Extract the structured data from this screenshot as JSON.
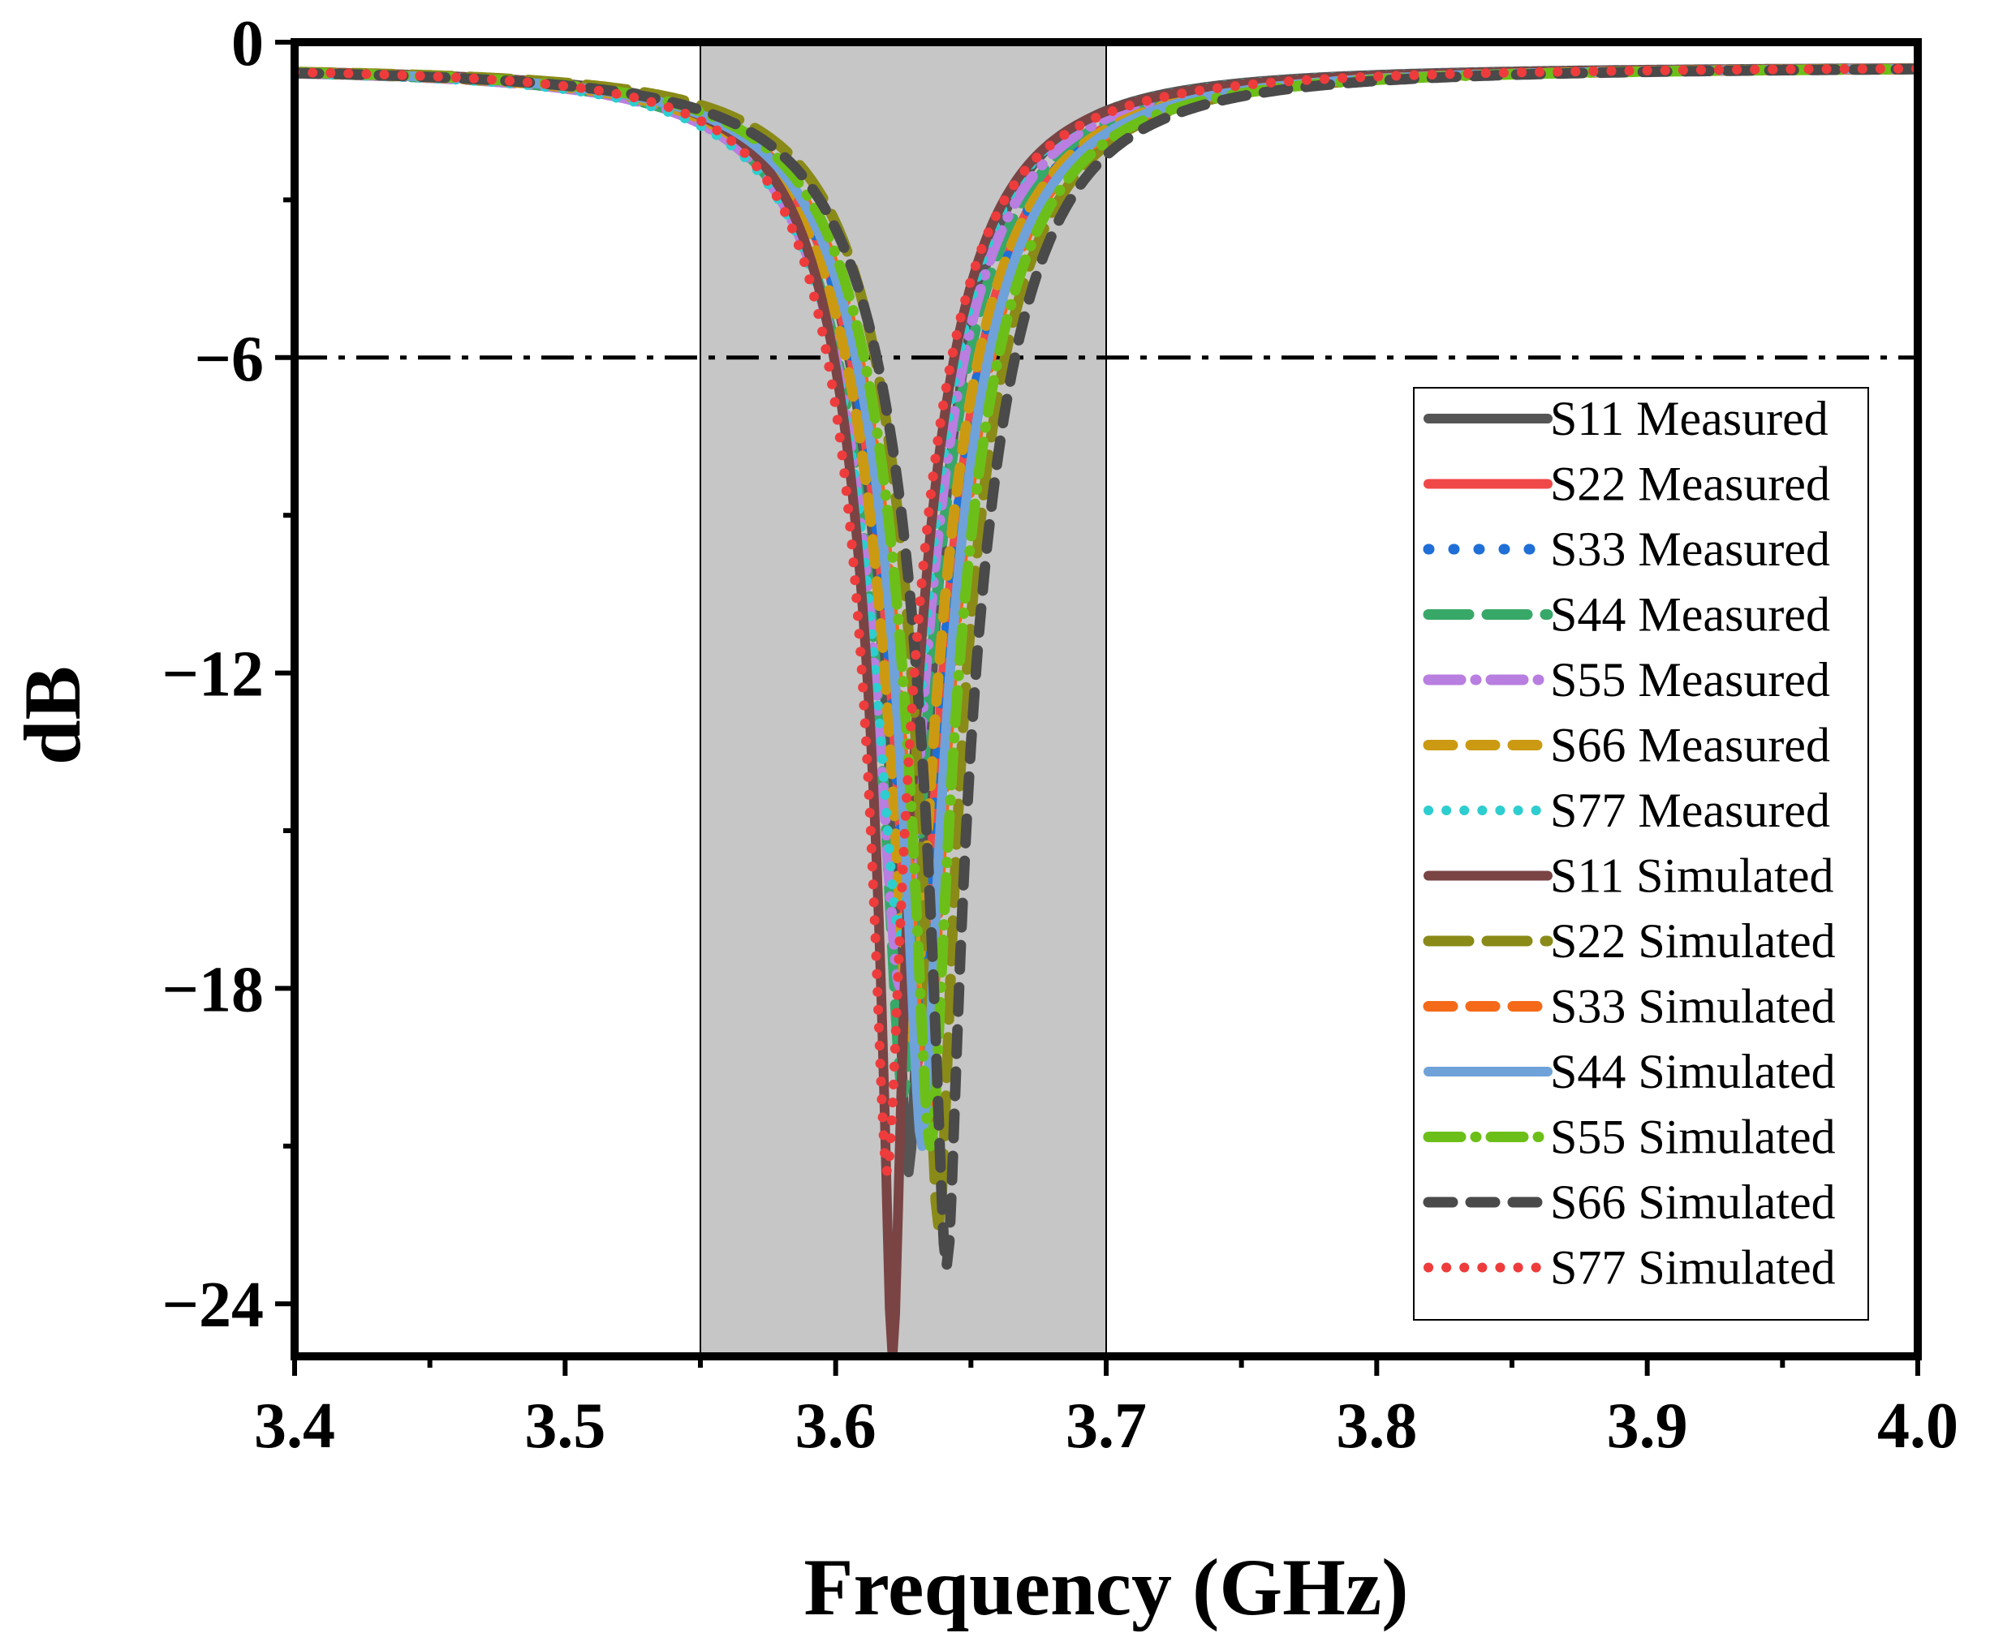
{
  "chart_data": {
    "type": "line",
    "title": "",
    "xlabel": "Frequency (GHz)",
    "ylabel": "dB",
    "xlim": [
      3.4,
      4.0
    ],
    "ylim": [
      -25,
      0
    ],
    "xticks": [
      3.4,
      3.5,
      3.6,
      3.7,
      3.8,
      3.9,
      4.0
    ],
    "xtick_labels": [
      "3.4",
      "3.5",
      "3.6",
      "3.7",
      "3.8",
      "3.9",
      "4.0"
    ],
    "yticks": [
      0,
      -6,
      -12,
      -18,
      -24
    ],
    "ytick_labels": [
      "0",
      "−6",
      "−12",
      "−18",
      "−24"
    ],
    "grid": false,
    "legend_position": "right",
    "shaded_band": {
      "x_start": 3.55,
      "x_end": 3.7,
      "color": "#c6c6c6"
    },
    "reference_line": {
      "y": -6,
      "style": "dash-dot",
      "color": "#000000"
    },
    "series": [
      {
        "name": "S11 Measured",
        "color": "#555555",
        "style": "solid",
        "f0": 3.627,
        "depth": -21.5,
        "gl": 0.036,
        "gr": 0.034
      },
      {
        "name": "S22 Measured",
        "color": "#f04848",
        "style": "solid",
        "f0": 3.63,
        "depth": -19.5,
        "gl": 0.04,
        "gr": 0.039
      },
      {
        "name": "S33 Measured",
        "color": "#1f6fd6",
        "style": "dot",
        "f0": 3.63,
        "depth": -19.5,
        "gl": 0.04,
        "gr": 0.039
      },
      {
        "name": "S44 Measured",
        "color": "#38a868",
        "style": "longdash",
        "f0": 3.625,
        "depth": -20.0,
        "gl": 0.04,
        "gr": 0.04
      },
      {
        "name": "S55 Measured",
        "color": "#b87ee0",
        "style": "dashdot",
        "f0": 3.624,
        "depth": -18.0,
        "gl": 0.04,
        "gr": 0.039
      },
      {
        "name": "S66 Measured",
        "color": "#cc9a12",
        "style": "dash",
        "f0": 3.628,
        "depth": -19.0,
        "gl": 0.04,
        "gr": 0.041
      },
      {
        "name": "S77 Measured",
        "color": "#2ecdd0",
        "style": "finedot",
        "f0": 3.624,
        "depth": -17.0,
        "gl": 0.041,
        "gr": 0.036
      },
      {
        "name": "S11 Simulated",
        "color": "#7a4444",
        "style": "solid",
        "f0": 3.621,
        "depth": -25.0,
        "gl": 0.035,
        "gr": 0.037
      },
      {
        "name": "S22 Simulated",
        "color": "#8a8a18",
        "style": "longdash",
        "f0": 3.638,
        "depth": -22.5,
        "gl": 0.038,
        "gr": 0.04
      },
      {
        "name": "S33 Simulated",
        "color": "#f56a18",
        "style": "dash",
        "f0": 3.633,
        "depth": -20.5,
        "gl": 0.04,
        "gr": 0.04
      },
      {
        "name": "S44 Simulated",
        "color": "#6fa2d8",
        "style": "solid",
        "f0": 3.632,
        "depth": -21.0,
        "gl": 0.04,
        "gr": 0.04
      },
      {
        "name": "S55 Simulated",
        "color": "#6cbf18",
        "style": "dashdot",
        "f0": 3.635,
        "depth": -21.0,
        "gl": 0.04,
        "gr": 0.041
      },
      {
        "name": "S66 Simulated",
        "color": "#4a4a4a",
        "style": "dash",
        "f0": 3.641,
        "depth": -23.3,
        "gl": 0.042,
        "gr": 0.041
      },
      {
        "name": "S77 Simulated",
        "color": "#ee3c3c",
        "style": "finedot",
        "f0": 3.619,
        "depth": -21.5,
        "gl": 0.036,
        "gr": 0.039
      }
    ]
  }
}
